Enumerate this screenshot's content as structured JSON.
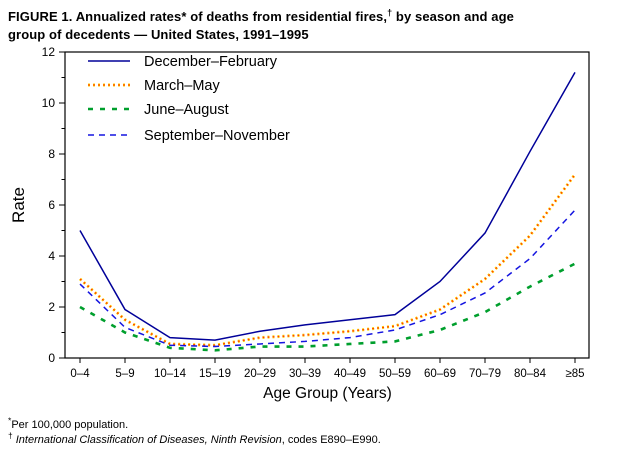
{
  "title": {
    "line1_before_dagger": "FIGURE 1. Annualized rates* of deaths from residential fires,",
    "dagger": "†",
    "line1_after_dagger": " by season and age",
    "line2": "group of decedents — United States, 1991–1995"
  },
  "chart_data": {
    "type": "line",
    "title": "Annualized rates of deaths from residential fires, by season and age group of decedents — United States, 1991–1995",
    "categories": [
      "0–4",
      "5–9",
      "10–14",
      "15–19",
      "20–29",
      "30–39",
      "40–49",
      "50–59",
      "60–69",
      "70–79",
      "80–84",
      "≥85"
    ],
    "series": [
      {
        "name": "December–February",
        "style": "solid",
        "color": "#000099",
        "values": [
          5.0,
          1.9,
          0.8,
          0.7,
          1.05,
          1.3,
          1.5,
          1.7,
          3.0,
          4.9,
          8.1,
          11.2
        ]
      },
      {
        "name": "March–May",
        "style": "dotted",
        "color": "#FFD800",
        "core_color": "#FF4000",
        "values": [
          3.1,
          1.5,
          0.55,
          0.5,
          0.8,
          0.9,
          1.05,
          1.25,
          1.9,
          3.1,
          4.8,
          7.2
        ]
      },
      {
        "name": "June–August",
        "style": "short-dash",
        "color": "#009F2D",
        "values": [
          2.0,
          1.0,
          0.4,
          0.3,
          0.45,
          0.45,
          0.55,
          0.65,
          1.1,
          1.8,
          2.8,
          3.7
        ]
      },
      {
        "name": "September–November",
        "style": "dash",
        "color": "#1515E0",
        "values": [
          2.9,
          1.2,
          0.5,
          0.45,
          0.55,
          0.65,
          0.8,
          1.1,
          1.7,
          2.55,
          3.9,
          5.8
        ]
      }
    ],
    "xlabel": "Age Group (Years)",
    "ylabel": "Rate",
    "ylim": [
      0,
      12
    ],
    "y_tick_step": 2,
    "y_minor_ticks": true,
    "grid": false,
    "legend_position": "top-left",
    "axis_color": "#000000"
  },
  "footnotes": [
    {
      "marker": "*",
      "italic_part": "",
      "tail": "Per 100,000 population."
    },
    {
      "marker": "†",
      "italic_part": "International Classification of Diseases, Ninth Revision",
      "tail": ", codes E890–E990."
    }
  ]
}
